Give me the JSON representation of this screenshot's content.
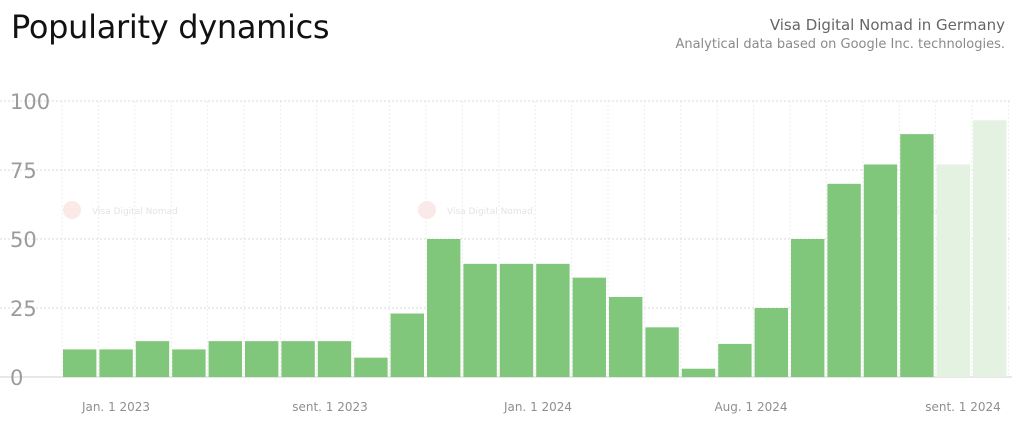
{
  "header": {
    "title": "Popularity dynamics",
    "subtitle_main": "Visa Digital Nomad in Germany",
    "subtitle_note": "Analytical data based on Google Inc. technologies."
  },
  "watermark": {
    "text": "Visa Digital Nomad"
  },
  "colors": {
    "bar": "#80c77c",
    "bar_forecast": "#e3f2e1",
    "grid": "#d9d9d9",
    "tick_text": "#9b9b9b"
  },
  "chart_data": {
    "type": "bar",
    "title": "Popularity dynamics",
    "ylim": [
      0,
      100
    ],
    "yticks": [
      0,
      25,
      50,
      75,
      100
    ],
    "grid": true,
    "x_tick_labels": [
      "Jan. 1 2023",
      "sent. 1 2023",
      "Jan. 1 2024",
      "Aug. 1 2024",
      "sent. 1 2024"
    ],
    "values": [
      10,
      10,
      13,
      10,
      13,
      13,
      13,
      13,
      7,
      23,
      50,
      41,
      41,
      41,
      36,
      29,
      18,
      3,
      12,
      25,
      50,
      70,
      77,
      88,
      77,
      93
    ],
    "forecast_from_index": 24
  }
}
